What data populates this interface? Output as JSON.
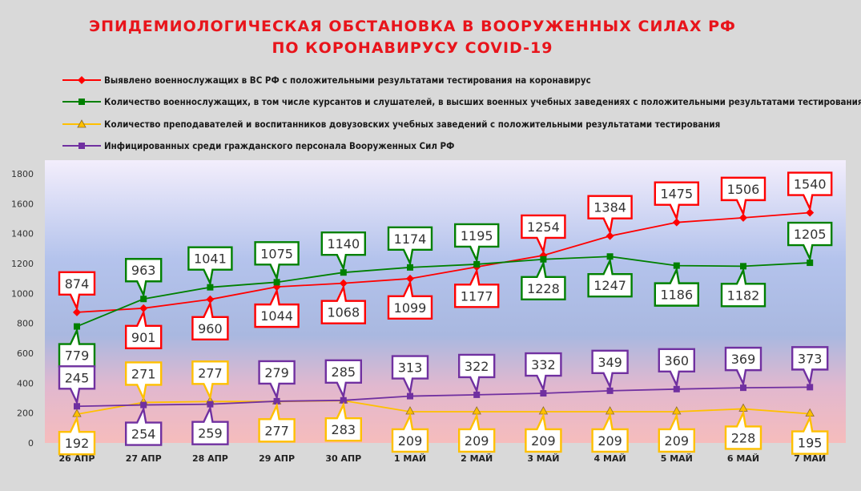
{
  "title_line1": "ЭПИДЕМИОЛОГИЧЕСКАЯ ОБСТАНОВКА В ВООРУЖЕННЫХ СИЛАХ РФ",
  "title_line2": "ПО КОРОНАВИРУСУ COVID-19",
  "colors": {
    "background": "#d9d9d9",
    "title": "#e8141b",
    "series": [
      "#ff0000",
      "#008000",
      "#ffc000",
      "#7030a0"
    ]
  },
  "chart_data": {
    "type": "line",
    "categories": [
      "26 АПР",
      "27 АПР",
      "28 АПР",
      "29 АПР",
      "30 АПР",
      "1 МАЙ",
      "2 МАЙ",
      "3 МАЙ",
      "4 МАЙ",
      "5 МАЙ",
      "6 МАЙ",
      "7 МАЙ"
    ],
    "y_ticks": [
      "0",
      "200",
      "400",
      "600",
      "800",
      "1000",
      "1200",
      "1400",
      "1600",
      "1800"
    ],
    "ylim": [
      0,
      1800
    ],
    "grid": false,
    "legend_position": "top",
    "background": "vertical gradient: lavender/blue top to pink bottom",
    "series": [
      {
        "name": "Выявлено военнослужащих в ВС РФ с положительными результатами тестирования на коронавирус",
        "color": "#ff0000",
        "marker": "diamond",
        "values": [
          874,
          901,
          960,
          1044,
          1068,
          1099,
          1177,
          1254,
          1384,
          1475,
          1506,
          1540
        ],
        "labels": [
          "874",
          "901",
          "960",
          "1044",
          "1068",
          "1099",
          "1177",
          "1254",
          "1384",
          "1475",
          "1506",
          "1540"
        ],
        "label_side": [
          "above",
          "below",
          "below",
          "below",
          "below",
          "below",
          "below",
          "above",
          "above",
          "above",
          "above",
          "above"
        ]
      },
      {
        "name": "Количество военнослужащих, в том числе курсантов и слушателей, в высших военных учебных заведениях с положительными результатами тестирования",
        "color": "#008000",
        "marker": "square",
        "values": [
          779,
          963,
          1041,
          1075,
          1140,
          1174,
          1195,
          1228,
          1247,
          1186,
          1182,
          1205
        ],
        "labels": [
          "779",
          "963",
          "1041",
          "1075",
          "1140",
          "1174",
          "1195",
          "1228",
          "1247",
          "1186",
          "1182",
          "1205"
        ],
        "label_side": [
          "below",
          "above",
          "above",
          "above",
          "above",
          "above",
          "above",
          "below",
          "below",
          "below",
          "below",
          "above"
        ]
      },
      {
        "name": "Количество преподавателей и воспитанников довузовских учебных заведений с положительными результатами тестирования",
        "color": "#ffc000",
        "marker": "triangle",
        "values": [
          192,
          271,
          277,
          277,
          283,
          209,
          209,
          209,
          209,
          209,
          228,
          195
        ],
        "labels": [
          "192",
          "271",
          "277",
          "277",
          "283",
          "209",
          "209",
          "209",
          "209",
          "209",
          "228",
          "195"
        ],
        "label_side": [
          "below",
          "above",
          "above",
          "below",
          "below",
          "below",
          "below",
          "below",
          "below",
          "below",
          "below",
          "below"
        ]
      },
      {
        "name": "Инфицированных среди гражданского персонала Вооруженных Сил РФ",
        "color": "#7030a0",
        "marker": "square",
        "values": [
          245,
          254,
          259,
          279,
          285,
          313,
          322,
          332,
          349,
          360,
          369,
          373
        ],
        "labels": [
          "245",
          "254",
          "259",
          "279",
          "285",
          "313",
          "322",
          "332",
          "349",
          "360",
          "369",
          "373"
        ],
        "label_side": [
          "above",
          "below",
          "below",
          "above",
          "above",
          "above",
          "above",
          "above",
          "above",
          "above",
          "above",
          "above"
        ]
      }
    ]
  }
}
